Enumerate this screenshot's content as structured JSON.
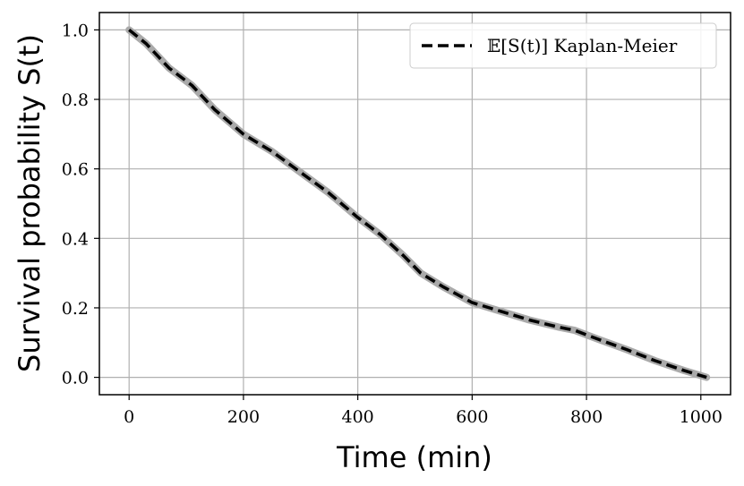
{
  "chart_data": {
    "type": "line",
    "title": "",
    "xlabel": "Time (min)",
    "ylabel": "Survival probability S(t)",
    "xlim": [
      -52,
      1052
    ],
    "ylim": [
      -0.05,
      1.05
    ],
    "xticks": [
      0,
      200,
      400,
      600,
      800,
      1000
    ],
    "yticks": [
      0.0,
      0.2,
      0.4,
      0.6,
      0.8,
      1.0
    ],
    "xtick_labels": [
      "0",
      "200",
      "400",
      "600",
      "800",
      "1000"
    ],
    "ytick_labels": [
      "0.0",
      "0.2",
      "0.4",
      "0.6",
      "0.8",
      "1.0"
    ],
    "grid": true,
    "legend_position": "top-right",
    "series": [
      {
        "name": "𝔼[S(t)] Kaplan-Meier",
        "style": "dashed",
        "color": "#000000",
        "band_color": "#aaaaaa",
        "x": [
          0,
          30,
          70,
          110,
          150,
          200,
          250,
          300,
          350,
          400,
          440,
          480,
          510,
          550,
          600,
          650,
          700,
          750,
          780,
          820,
          870,
          920,
          970,
          1010
        ],
        "y": [
          1.0,
          0.96,
          0.89,
          0.84,
          0.77,
          0.7,
          0.65,
          0.59,
          0.53,
          0.46,
          0.41,
          0.35,
          0.3,
          0.26,
          0.215,
          0.19,
          0.165,
          0.145,
          0.135,
          0.11,
          0.08,
          0.048,
          0.02,
          0.0
        ]
      }
    ]
  }
}
